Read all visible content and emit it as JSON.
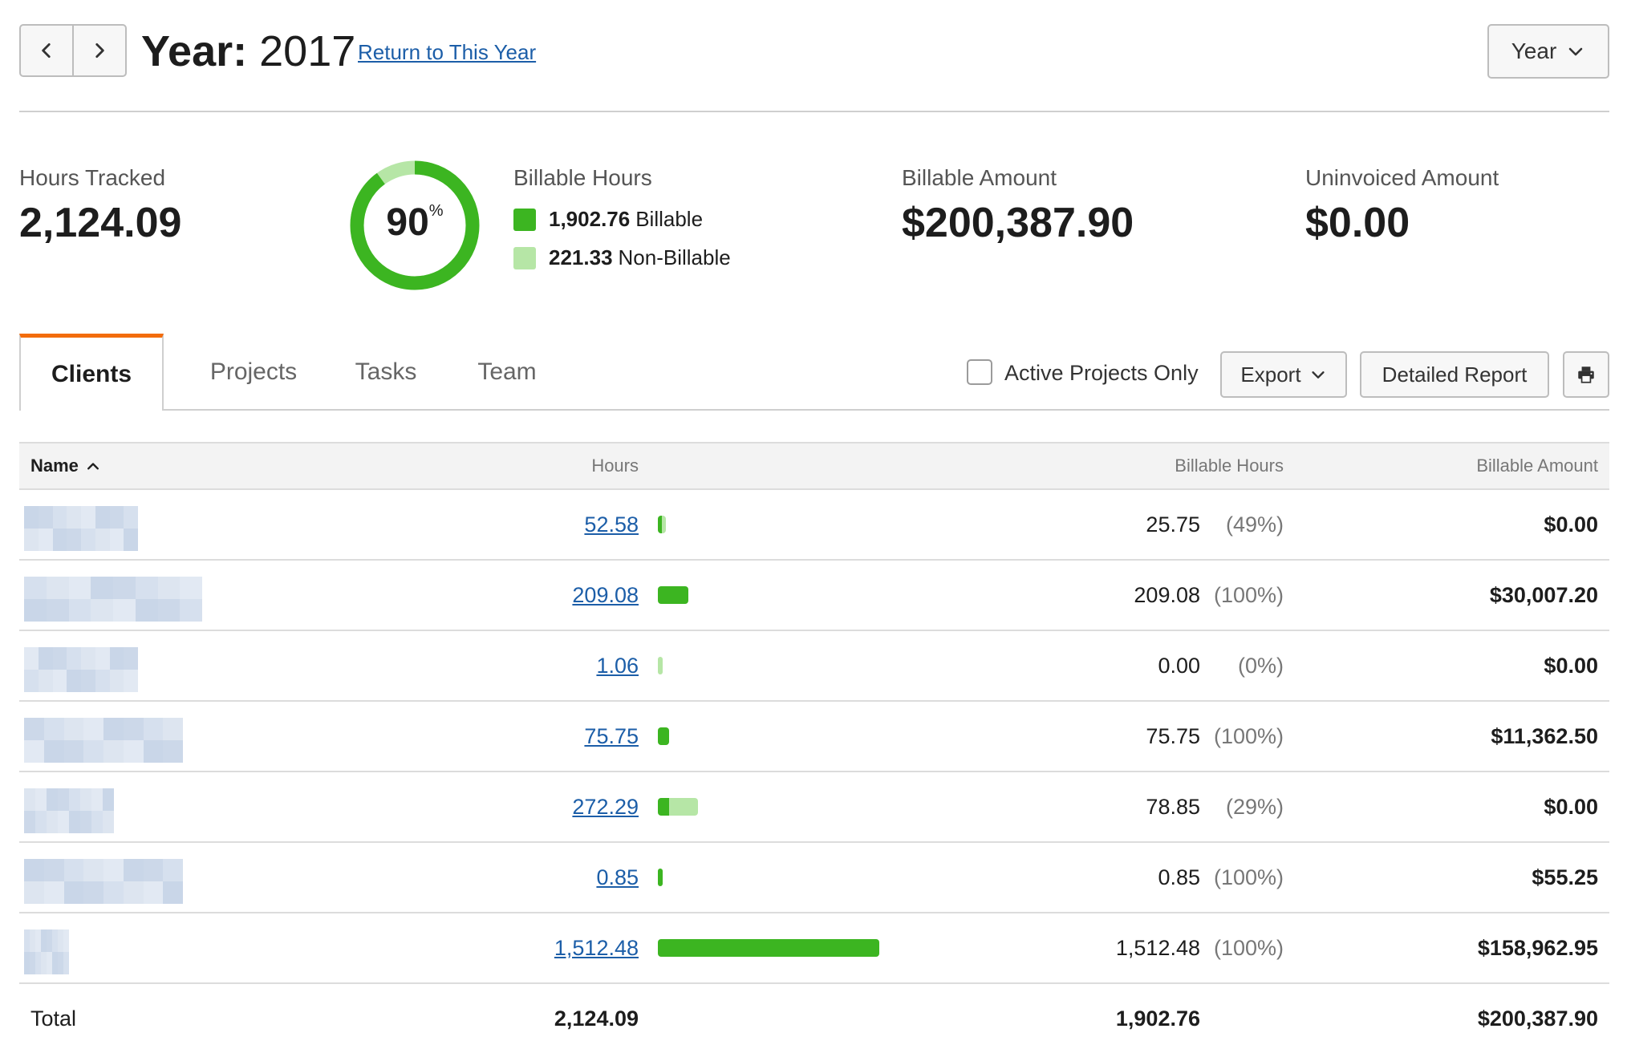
{
  "header": {
    "year_label": "Year:",
    "year_value": "2017",
    "return_link": "Return to This Year",
    "period_select": "Year"
  },
  "summary": {
    "hours_tracked_label": "Hours Tracked",
    "hours_tracked_value": "2,124.09",
    "billable_percent": "90",
    "billable_percent_sign": "%",
    "billable_fraction": 0.9,
    "billable_hours_label": "Billable Hours",
    "billable_hours_value": "1,902.76",
    "billable_text": "Billable",
    "non_billable_hours_value": "221.33",
    "non_billable_text": "Non-Billable",
    "billable_amount_label": "Billable Amount",
    "billable_amount_value": "$200,387.90",
    "uninvoiced_label": "Uninvoiced Amount",
    "uninvoiced_value": "$0.00"
  },
  "colors": {
    "billable": "#3cb521",
    "non_billable": "#b6e6a6",
    "accent_tab": "#f36c0c",
    "link": "#1c5ea8"
  },
  "tabs": [
    {
      "label": "Clients",
      "active": true
    },
    {
      "label": "Projects",
      "active": false
    },
    {
      "label": "Tasks",
      "active": false
    },
    {
      "label": "Team",
      "active": false
    }
  ],
  "toolbar": {
    "active_projects_label": "Active Projects Only",
    "active_projects_checked": false,
    "export_label": "Export",
    "detailed_report_label": "Detailed Report",
    "print_icon": "printer-icon"
  },
  "table": {
    "columns": {
      "name": "Name",
      "hours": "Hours",
      "billable_hours": "Billable Hours",
      "billable_amount": "Billable Amount"
    },
    "rows": [
      {
        "hours": "52.58",
        "billable_hours": "25.75",
        "percent": "(49%)",
        "amount": "$0.00",
        "hours_num": 52.58,
        "billable_num": 25.75
      },
      {
        "hours": "209.08",
        "billable_hours": "209.08",
        "percent": "(100%)",
        "amount": "$30,007.20",
        "hours_num": 209.08,
        "billable_num": 209.08
      },
      {
        "hours": "1.06",
        "billable_hours": "0.00",
        "percent": "(0%)",
        "amount": "$0.00",
        "hours_num": 1.06,
        "billable_num": 0
      },
      {
        "hours": "75.75",
        "billable_hours": "75.75",
        "percent": "(100%)",
        "amount": "$11,362.50",
        "hours_num": 75.75,
        "billable_num": 75.75
      },
      {
        "hours": "272.29",
        "billable_hours": "78.85",
        "percent": "(29%)",
        "amount": "$0.00",
        "hours_num": 272.29,
        "billable_num": 78.85
      },
      {
        "hours": "0.85",
        "billable_hours": "0.85",
        "percent": "(100%)",
        "amount": "$55.25",
        "hours_num": 0.85,
        "billable_num": 0.85
      },
      {
        "hours": "1,512.48",
        "billable_hours": "1,512.48",
        "percent": "(100%)",
        "amount": "$158,962.95",
        "hours_num": 1512.48,
        "billable_num": 1512.48
      }
    ],
    "total": {
      "label": "Total",
      "hours": "2,124.09",
      "billable_hours": "1,902.76",
      "amount": "$200,387.90"
    }
  }
}
